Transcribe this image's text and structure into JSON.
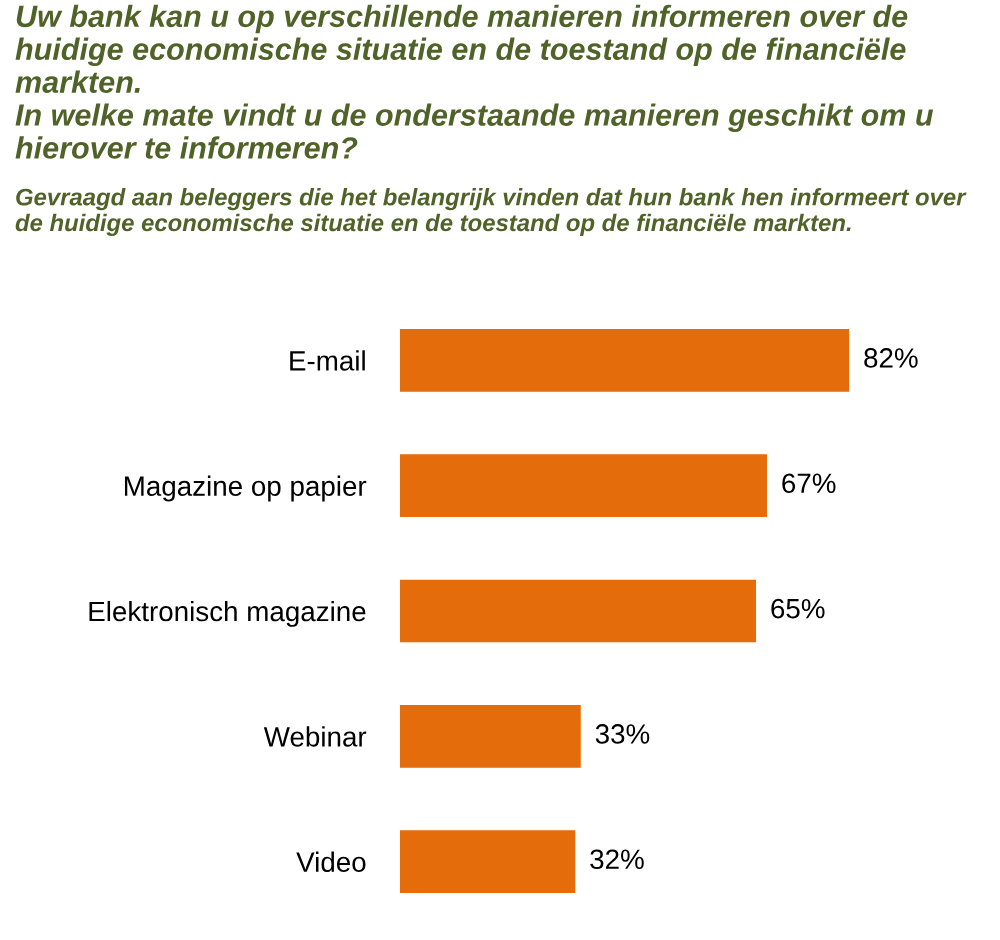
{
  "chart_data": {
    "type": "bar",
    "orientation": "horizontal",
    "title": "Uw bank kan u op verschillende manieren informeren over de huidige economische situatie en de toestand op de financiële markten.\nIn welke mate vindt u de onderstaande manieren geschikt om u hierover te informeren?",
    "subtitle": "Gevraagd aan beleggers die het belangrijk vinden dat hun bank hen informeert over de huidige economische situatie en de toestand op de financiële markten.",
    "categories": [
      "E-mail",
      "Magazine op papier",
      "Elektronisch magazine",
      "Webinar",
      "Video"
    ],
    "values": [
      82,
      67,
      65,
      33,
      32
    ],
    "value_labels": [
      "82%",
      "67%",
      "65%",
      "33%",
      "32%"
    ],
    "color": "#e46c0a",
    "tick_labels": "y",
    "grid": false,
    "legend": false
  }
}
